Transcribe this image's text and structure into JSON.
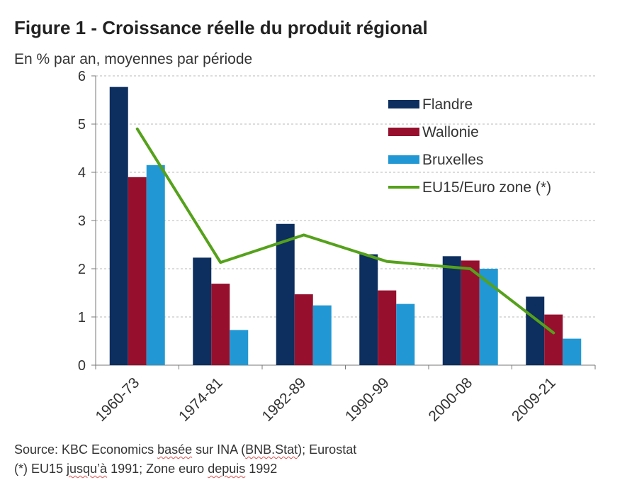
{
  "chart_data": {
    "type": "bar",
    "title": "Figure 1 - Croissance réelle du produit régional",
    "subtitle": "En % par an, moyennes par période",
    "categories": [
      "1960-73",
      "1974-81",
      "1982-89",
      "1990-99",
      "2000-08",
      "2009-21"
    ],
    "ylim": [
      0,
      6
    ],
    "yticks": [
      0,
      1,
      2,
      3,
      4,
      5,
      6
    ],
    "grid": true,
    "legend_position": "top-right",
    "series": [
      {
        "name": "Flandre",
        "kind": "bar",
        "color": "#0d2f5f",
        "values": [
          5.77,
          2.23,
          2.93,
          2.3,
          2.26,
          1.42
        ]
      },
      {
        "name": "Wallonie",
        "kind": "bar",
        "color": "#96102e",
        "values": [
          3.9,
          1.69,
          1.47,
          1.55,
          2.17,
          1.05
        ]
      },
      {
        "name": "Bruxelles",
        "kind": "bar",
        "color": "#2198d3",
        "values": [
          4.15,
          0.73,
          1.24,
          1.27,
          2.0,
          0.55
        ]
      },
      {
        "name": "EU15/Euro zone (*)",
        "kind": "line",
        "color": "#55a11b",
        "values": [
          4.9,
          2.13,
          2.7,
          2.15,
          2.0,
          0.67
        ]
      }
    ]
  },
  "footer": {
    "source_prefix": "Source: KBC Economics ",
    "source_word": "basée",
    "source_mid": " sur INA (",
    "source_bnb": "BNB.Stat",
    "source_suffix": "); Eurostat",
    "note_prefix": "(*) EU15 ",
    "note_jusqua": "jusqu’à",
    "note_mid": " 1991; Zone euro ",
    "note_depuis": "depuis",
    "note_suffix": " 1992"
  }
}
